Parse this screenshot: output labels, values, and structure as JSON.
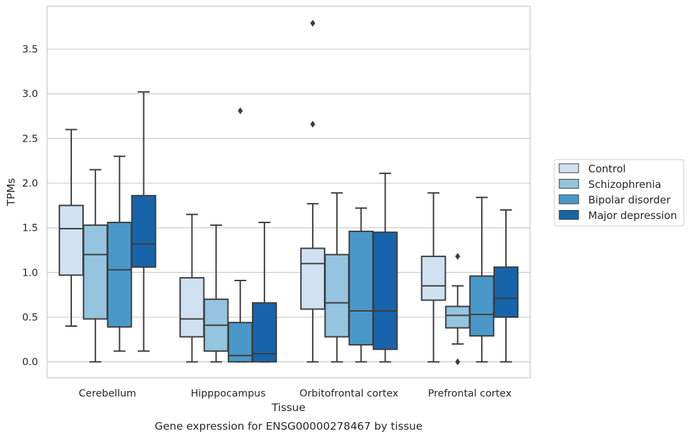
{
  "chart_data": {
    "type": "box",
    "title": "",
    "xlabel": "Tissue",
    "ylabel": "TPMs",
    "caption": "Gene expression for ENSG00000278467 by tissue",
    "categories": [
      "Cerebellum",
      "Hipppocampus",
      "Orbitofrontal cortex",
      "Prefrontal cortex"
    ],
    "ylim": [
      -0.18,
      3.98
    ],
    "yticks": [
      "0.0",
      "0.5",
      "1.0",
      "1.5",
      "2.0",
      "2.5",
      "3.0",
      "3.5"
    ],
    "grid": "horizontal",
    "legend_position": "right",
    "series": [
      {
        "name": "Control",
        "color": "#d0e1f2",
        "boxes": [
          {
            "whislo": 0.4,
            "q1": 0.97,
            "med": 1.49,
            "q3": 1.75,
            "whishi": 2.6,
            "fliers": []
          },
          {
            "whislo": 0.0,
            "q1": 0.28,
            "med": 0.48,
            "q3": 0.94,
            "whishi": 1.65,
            "fliers": []
          },
          {
            "whislo": 0.0,
            "q1": 0.59,
            "med": 1.1,
            "q3": 1.27,
            "whishi": 1.77,
            "fliers": [
              2.66,
              3.79
            ]
          },
          {
            "whislo": 0.0,
            "q1": 0.69,
            "med": 0.85,
            "q3": 1.18,
            "whishi": 1.89,
            "fliers": []
          }
        ]
      },
      {
        "name": "Schizophrenia",
        "color": "#94c4df",
        "boxes": [
          {
            "whislo": 0.0,
            "q1": 0.48,
            "med": 1.2,
            "q3": 1.53,
            "whishi": 2.15,
            "fliers": []
          },
          {
            "whislo": 0.0,
            "q1": 0.12,
            "med": 0.41,
            "q3": 0.7,
            "whishi": 1.53,
            "fliers": []
          },
          {
            "whislo": 0.0,
            "q1": 0.28,
            "med": 0.66,
            "q3": 1.2,
            "whishi": 1.89,
            "fliers": []
          },
          {
            "whislo": 0.2,
            "q1": 0.38,
            "med": 0.52,
            "q3": 0.62,
            "whishi": 0.85,
            "fliers": [
              1.18,
              0.0
            ]
          }
        ]
      },
      {
        "name": "Bipolar disorder",
        "color": "#4a98c9",
        "boxes": [
          {
            "whislo": 0.12,
            "q1": 0.39,
            "med": 1.03,
            "q3": 1.56,
            "whishi": 2.3,
            "fliers": []
          },
          {
            "whislo": 0.0,
            "q1": 0.0,
            "med": 0.07,
            "q3": 0.44,
            "whishi": 0.91,
            "fliers": [
              2.81
            ]
          },
          {
            "whislo": 0.0,
            "q1": 0.19,
            "med": 0.57,
            "q3": 1.46,
            "whishi": 1.72,
            "fliers": []
          },
          {
            "whislo": 0.0,
            "q1": 0.29,
            "med": 0.53,
            "q3": 0.96,
            "whishi": 1.84,
            "fliers": []
          }
        ]
      },
      {
        "name": "Major depression",
        "color": "#1764ab",
        "boxes": [
          {
            "whislo": 0.12,
            "q1": 1.06,
            "med": 1.32,
            "q3": 1.86,
            "whishi": 3.02,
            "fliers": []
          },
          {
            "whislo": 0.0,
            "q1": 0.0,
            "med": 0.09,
            "q3": 0.66,
            "whishi": 1.56,
            "fliers": []
          },
          {
            "whislo": 0.0,
            "q1": 0.14,
            "med": 0.57,
            "q3": 1.45,
            "whishi": 2.11,
            "fliers": []
          },
          {
            "whislo": 0.0,
            "q1": 0.5,
            "med": 0.71,
            "q3": 1.06,
            "whishi": 1.7,
            "fliers": []
          }
        ]
      }
    ]
  }
}
